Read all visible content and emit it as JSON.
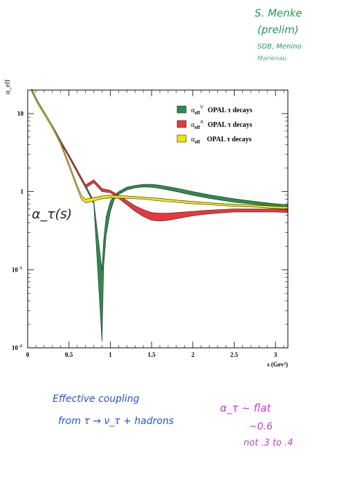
{
  "chart_data": {
    "type": "line",
    "ylabel": "α_eff",
    "xlabel": "s (Gev²)",
    "xlim": [
      0,
      3.15
    ],
    "ylim": [
      0.01,
      20
    ],
    "yscale": "log",
    "x_ticks": [
      "0",
      "0.5",
      "1",
      "1.5",
      "2",
      "2.5",
      "3"
    ],
    "y_ticks": [
      {
        "base": "10",
        "exp": "-2"
      },
      {
        "base": "10",
        "exp": "-1"
      },
      {
        "base": "1",
        "exp": ""
      },
      {
        "base": "10",
        "exp": ""
      }
    ],
    "legend_position": "top-right",
    "series": [
      {
        "name_main": "α",
        "name_sub": "eff",
        "name_sup": "V",
        "name_rest": "OPAL τ decays",
        "color": "#2e8b4e",
        "x": [
          0.05,
          0.12,
          0.2,
          0.3,
          0.4,
          0.5,
          0.6,
          0.7,
          0.8,
          0.9,
          0.92,
          0.95,
          1.0,
          1.05,
          1.1,
          1.2,
          1.3,
          1.4,
          1.5,
          1.6,
          1.8,
          2.0,
          2.2,
          2.5,
          2.8,
          3.0,
          3.15
        ],
        "y_lo": [
          19.0,
          13.5,
          9.8,
          6.5,
          4.2,
          2.75,
          1.75,
          1.12,
          0.7,
          0.012,
          0.11,
          0.28,
          0.55,
          0.8,
          0.92,
          1.05,
          1.12,
          1.15,
          1.14,
          1.1,
          1.0,
          0.9,
          0.82,
          0.73,
          0.68,
          0.65,
          0.63
        ],
        "y_hi": [
          20.5,
          14.5,
          10.5,
          7.0,
          4.5,
          2.95,
          1.9,
          1.22,
          0.76,
          0.1,
          0.24,
          0.48,
          0.75,
          0.9,
          1.0,
          1.14,
          1.2,
          1.24,
          1.24,
          1.21,
          1.11,
          1.0,
          0.91,
          0.81,
          0.74,
          0.7,
          0.68
        ]
      },
      {
        "name_main": "α",
        "name_sub": "eff",
        "name_sup": "A",
        "name_rest": "OPAL τ decays",
        "color": "#e8383d",
        "x": [
          0.05,
          0.12,
          0.2,
          0.3,
          0.4,
          0.5,
          0.6,
          0.7,
          0.8,
          0.9,
          1.0,
          1.1,
          1.2,
          1.3,
          1.4,
          1.5,
          1.6,
          1.7,
          1.8,
          2.0,
          2.2,
          2.5,
          2.8,
          3.0,
          3.15
        ],
        "y_lo": [
          19.0,
          13.5,
          9.8,
          6.5,
          4.2,
          2.75,
          1.75,
          1.12,
          1.3,
          1.0,
          0.97,
          0.82,
          0.68,
          0.56,
          0.48,
          0.43,
          0.42,
          0.43,
          0.45,
          0.49,
          0.52,
          0.55,
          0.55,
          0.55,
          0.54
        ],
        "y_hi": [
          20.5,
          14.5,
          10.5,
          7.0,
          4.5,
          2.95,
          1.9,
          1.22,
          1.42,
          1.1,
          1.04,
          0.9,
          0.77,
          0.66,
          0.59,
          0.54,
          0.53,
          0.53,
          0.54,
          0.56,
          0.58,
          0.6,
          0.6,
          0.6,
          0.59
        ]
      },
      {
        "name_main": "α",
        "name_sub": "eff",
        "name_sup": "",
        "name_rest": "OPAL τ decays",
        "color": "#f2e600",
        "x": [
          0.05,
          0.12,
          0.2,
          0.3,
          0.4,
          0.5,
          0.6,
          0.65,
          0.7,
          0.8,
          0.9,
          1.0,
          1.2,
          1.4,
          1.6,
          1.8,
          2.0,
          2.2,
          2.5,
          2.8,
          3.0,
          3.15
        ],
        "y_lo": [
          19.0,
          13.5,
          9.8,
          6.5,
          4.0,
          2.1,
          1.1,
          0.8,
          0.72,
          0.76,
          0.81,
          0.83,
          0.82,
          0.8,
          0.76,
          0.73,
          0.7,
          0.68,
          0.65,
          0.63,
          0.61,
          0.6
        ],
        "y_hi": [
          20.5,
          14.5,
          10.5,
          7.0,
          4.3,
          2.3,
          1.2,
          0.9,
          0.8,
          0.84,
          0.88,
          0.9,
          0.88,
          0.85,
          0.82,
          0.78,
          0.75,
          0.72,
          0.69,
          0.67,
          0.65,
          0.64
        ]
      }
    ]
  },
  "annotations": {
    "top_right": [
      "S. Menke",
      "(prelim)",
      "SDB, Menino",
      "Marienau"
    ],
    "plot_note": "α_τ(s)",
    "bottom_left": [
      "Effective coupling",
      "from  τ → ν_τ + hadrons"
    ],
    "bottom_right": [
      "α_τ ~ flat",
      "~0.6",
      "not .3 to .4"
    ]
  },
  "colors": {
    "handwriting_green": "#1f9a55",
    "handwriting_blue": "#2a4fd6",
    "handwriting_magenta": "#c43ad1"
  }
}
